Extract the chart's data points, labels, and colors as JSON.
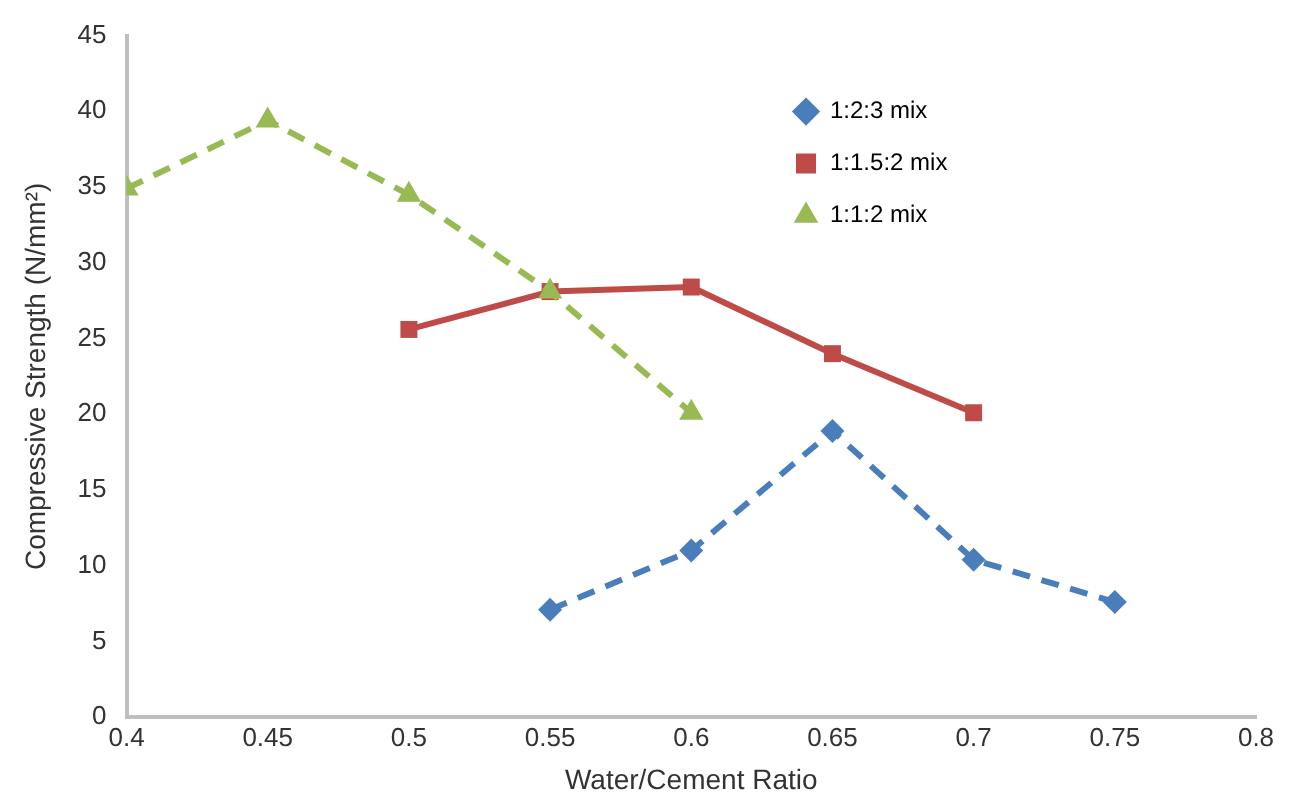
{
  "chart_data": {
    "type": "line",
    "xlabel": "Water/Cement Ratio",
    "ylabel": "Compressive Strength (N/mm²)",
    "xlim": [
      0.4,
      0.8
    ],
    "xticks": [
      0.4,
      0.45,
      0.5,
      0.55,
      0.6,
      0.65,
      0.7,
      0.75,
      0.8
    ],
    "ylim": [
      0,
      45
    ],
    "yticks": [
      0,
      5,
      10,
      15,
      20,
      25,
      30,
      35,
      40,
      45
    ],
    "grid": false,
    "legend": "top right",
    "series": [
      {
        "name": "1:2:3 mix",
        "color": "#4a7ebb",
        "marker": "diamond",
        "line_style": "dashed",
        "x": [
          0.55,
          0.6,
          0.65,
          0.7,
          0.75
        ],
        "values": [
          7.1,
          11,
          18.9,
          10.4,
          7.6
        ]
      },
      {
        "name": "1:1.5:2 mix",
        "color": "#be4b48",
        "marker": "square",
        "line_style": "solid",
        "x": [
          0.5,
          0.55,
          0.6,
          0.65,
          0.7
        ],
        "values": [
          25.6,
          28.1,
          28.4,
          24,
          20.1
        ]
      },
      {
        "name": "1:1:2 mix",
        "color": "#98b954",
        "marker": "triangle",
        "line_style": "dashed",
        "x": [
          0.4,
          0.45,
          0.5,
          0.55,
          0.6
        ],
        "values": [
          34.9,
          39.4,
          34.5,
          28.1,
          20.1
        ]
      }
    ]
  }
}
